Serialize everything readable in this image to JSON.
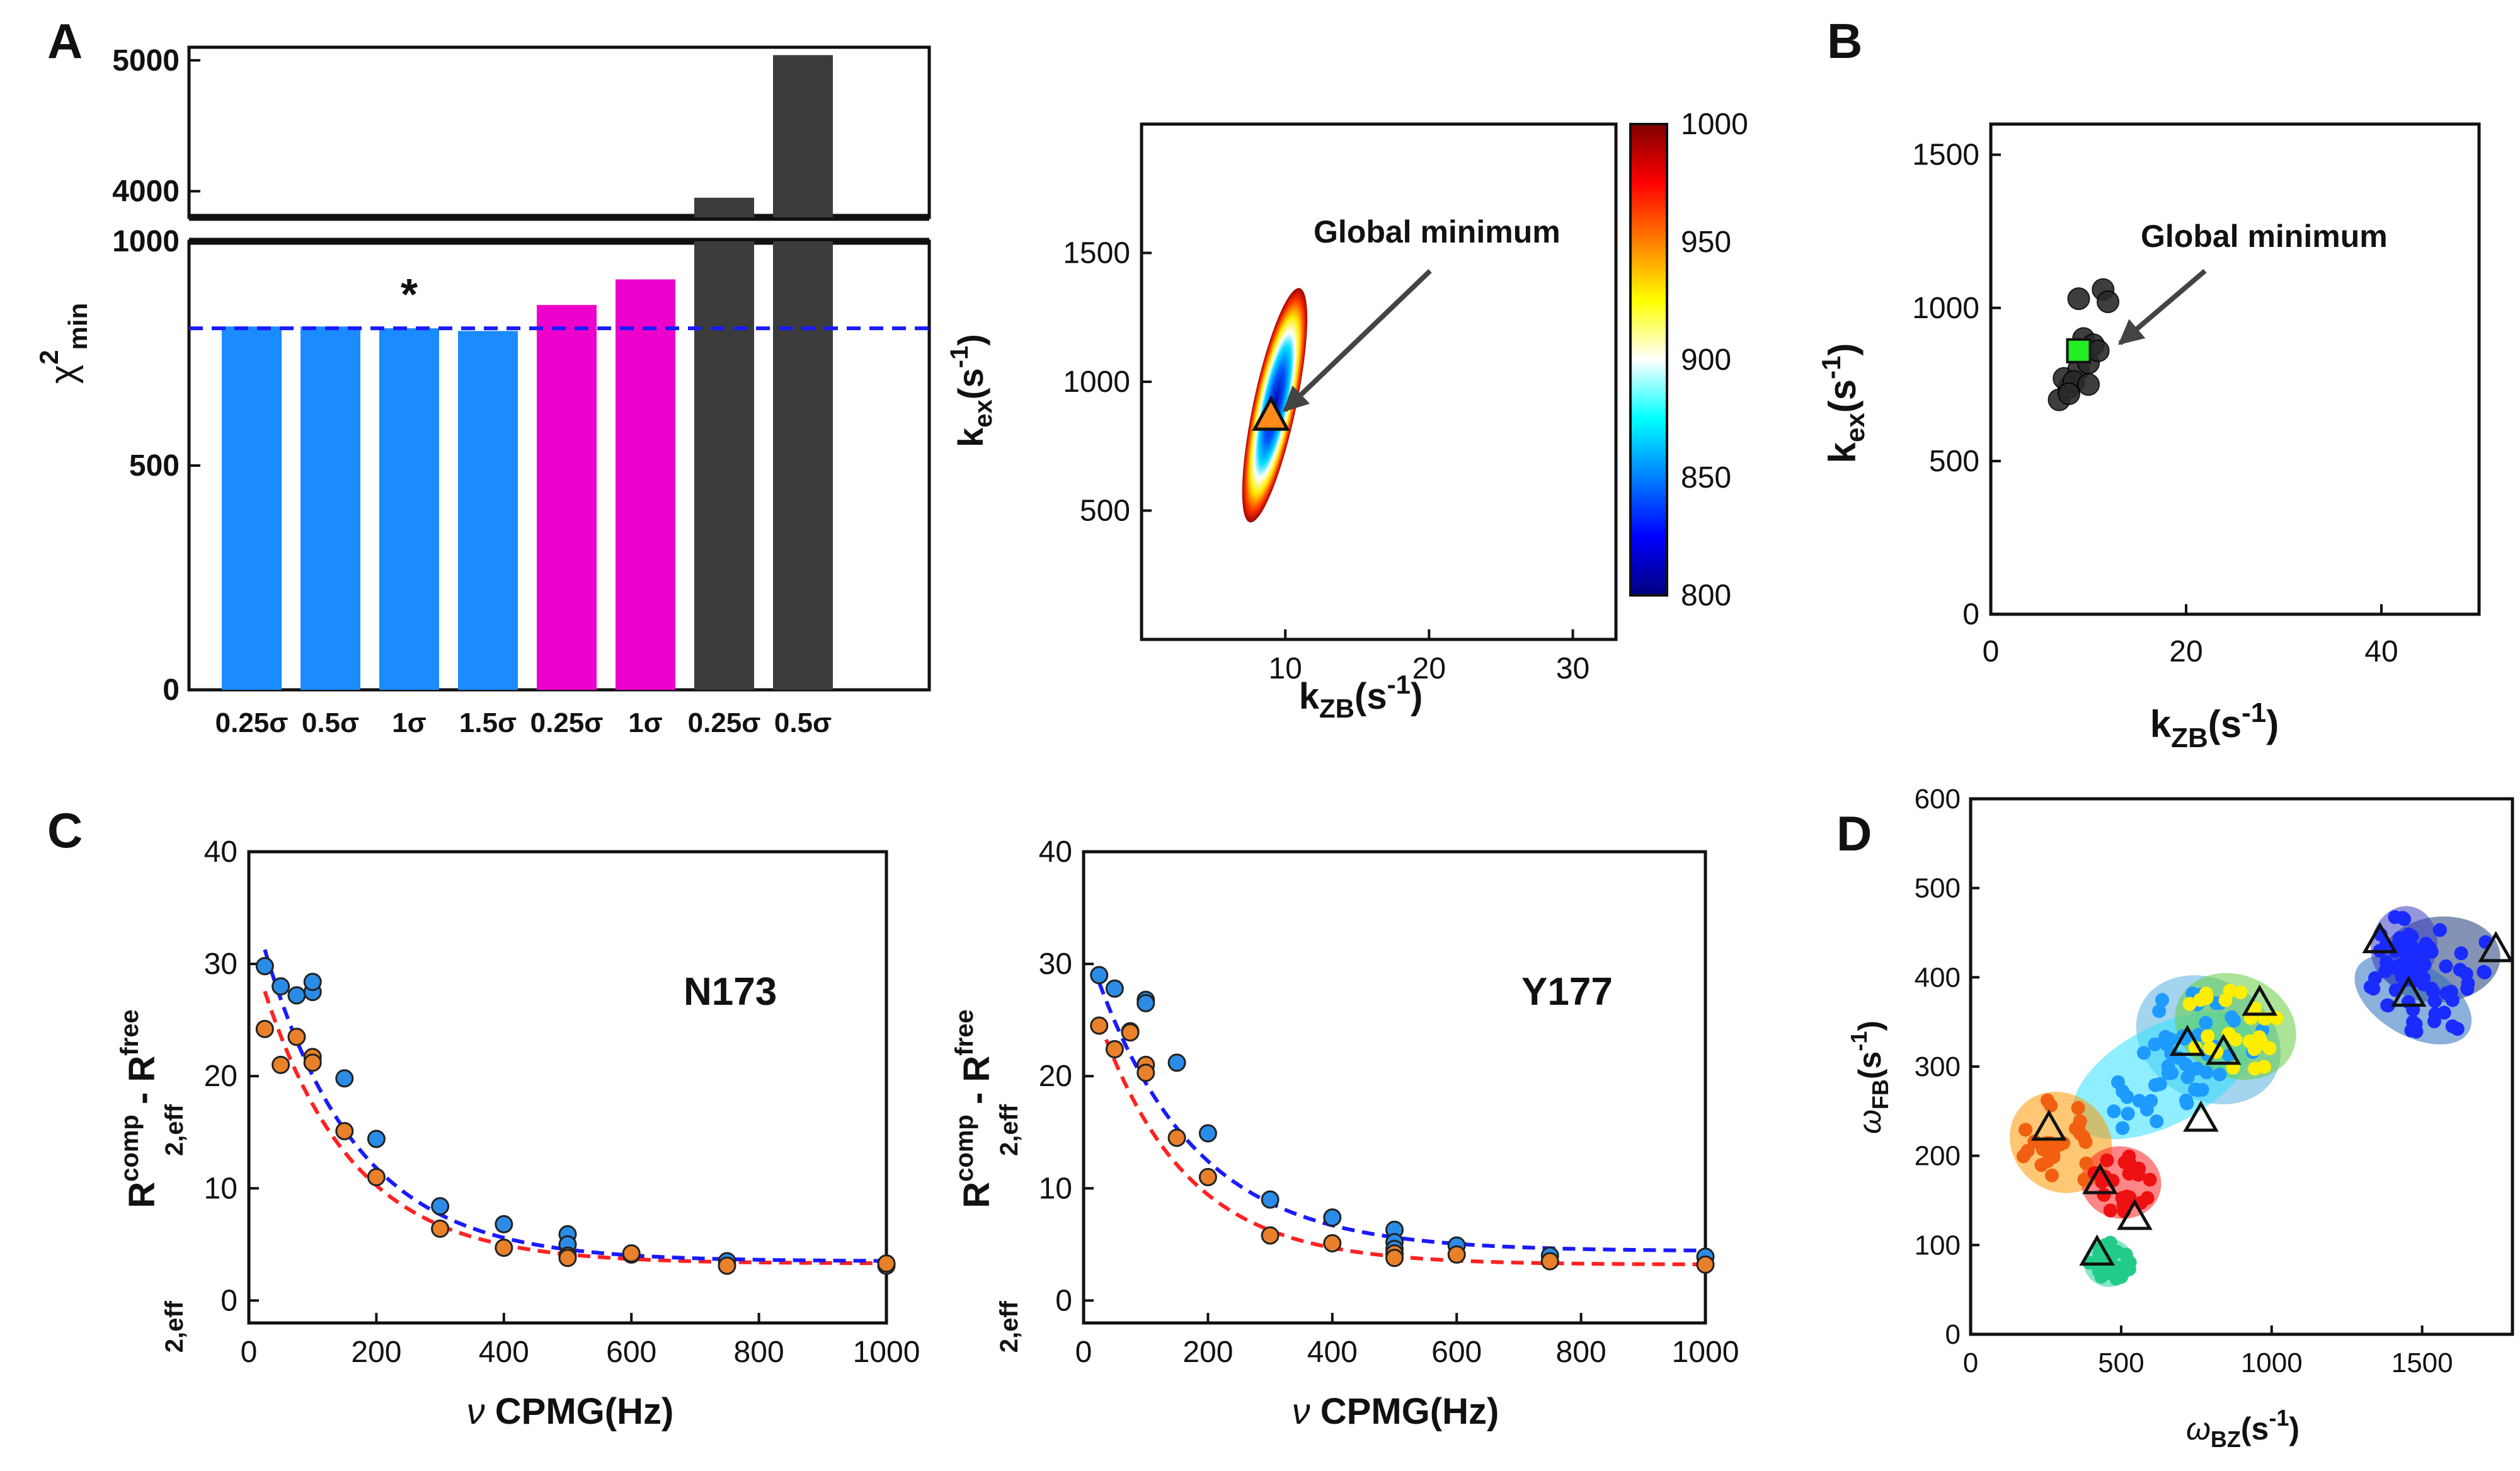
{
  "panel_labels": {
    "A": "A",
    "B": "B",
    "C": "C",
    "D": "D"
  },
  "axis_text": {
    "chi_sym": "χ",
    "chi_sup": "2",
    "chi_sub": "min",
    "k": "k",
    "ex": "ex",
    "zb": "ZB",
    "s": "(s",
    "neg1": "-1",
    "close": ")",
    "nu": "ν",
    "cpmg": " CPMG(Hz)",
    "R": "R",
    "comp": "comp",
    "free": "free",
    "sub2eff": "2,eff",
    "minus": " - ",
    "omega": "ω",
    "fb": "FB",
    "bz": "BZ"
  },
  "chart_data": [
    {
      "id": "A-bars",
      "type": "bar",
      "title": "",
      "ylabel": "χ2 min",
      "broken_axis": true,
      "ylim_lower": [
        0,
        1000
      ],
      "ylim_upper": [
        3800,
        5100
      ],
      "categories": [
        "0.25σ",
        "0.5σ",
        "1σ",
        "1.5σ",
        "0.25σ",
        "1σ",
        "0.25σ",
        "0.5σ"
      ],
      "values": [
        810,
        810,
        806,
        800,
        858,
        915,
        3950,
        5040
      ],
      "colors": [
        "#1a8cff",
        "#1a8cff",
        "#1a8cff",
        "#1a8cff",
        "#ee00cc",
        "#ee00cc",
        "#3c3c3c",
        "#3c3c3c"
      ],
      "reference_line": 806,
      "annotation": "*",
      "annotation_index": 2,
      "yticks_lower": [
        0,
        500,
        1000
      ],
      "yticks_upper": [
        4000,
        5000
      ]
    },
    {
      "id": "A-contour",
      "type": "heatmap",
      "xlabel": "kZB (s-1)",
      "ylabel": "kex (s-1)",
      "xlim": [
        0,
        33
      ],
      "ylim": [
        0,
        2000
      ],
      "xticks": [
        10,
        20,
        30
      ],
      "yticks": [
        500,
        1000,
        1500
      ],
      "annotation": "Global minimum",
      "minimum": {
        "x": 9,
        "y": 860
      },
      "colorbar": {
        "min": 800,
        "max": 1000,
        "ticks": [
          800,
          850,
          900,
          950,
          1000
        ]
      }
    },
    {
      "id": "B-scatter",
      "type": "scatter",
      "xlabel": "kZB (s-1)",
      "ylabel": "kex (s-1)",
      "xlim": [
        0,
        50
      ],
      "ylim": [
        0,
        1600
      ],
      "xticks": [
        0,
        20,
        40
      ],
      "yticks": [
        0,
        500,
        1000,
        1500
      ],
      "annotation": "Global minimum",
      "points": [
        [
          7,
          700
        ],
        [
          8,
          740
        ],
        [
          7.5,
          770
        ],
        [
          9,
          800
        ],
        [
          8.5,
          760
        ],
        [
          10,
          820
        ],
        [
          9.5,
          900
        ],
        [
          10.5,
          880
        ],
        [
          11,
          860
        ],
        [
          9,
          1030
        ],
        [
          11.5,
          1060
        ],
        [
          12,
          1020
        ],
        [
          8,
          720
        ],
        [
          10,
          750
        ]
      ],
      "minimum": {
        "x": 9,
        "y": 860
      }
    },
    {
      "id": "C-N173",
      "type": "scatter",
      "title": "N173",
      "xlabel": "ν CPMG(Hz)",
      "ylabel": "R2,eff comp - R2,eff free",
      "xlim": [
        0,
        1000
      ],
      "ylim": [
        -2,
        40
      ],
      "xticks": [
        0,
        200,
        400,
        600,
        800,
        1000
      ],
      "yticks": [
        0,
        10,
        20,
        30,
        40
      ],
      "series": [
        {
          "name": "blue",
          "color": "#2b8ce8",
          "points": [
            [
              25,
              29.8
            ],
            [
              50,
              28
            ],
            [
              75,
              27.2
            ],
            [
              100,
              27.5
            ],
            [
              100,
              28.4
            ],
            [
              150,
              19.8
            ],
            [
              200,
              14.4
            ],
            [
              300,
              8.4
            ],
            [
              400,
              6.8
            ],
            [
              500,
              5.9
            ],
            [
              500,
              5.0
            ],
            [
              600,
              4.1
            ],
            [
              750,
              3.5
            ],
            [
              1000,
              3.1
            ]
          ],
          "fit": {
            "A": 33,
            "k": 145,
            "b": 3.5
          }
        },
        {
          "name": "orange",
          "color": "#e8812a",
          "points": [
            [
              25,
              24.2
            ],
            [
              50,
              21
            ],
            [
              75,
              23.5
            ],
            [
              100,
              21.7
            ],
            [
              100,
              21.2
            ],
            [
              150,
              15.1
            ],
            [
              200,
              11
            ],
            [
              300,
              6.4
            ],
            [
              400,
              4.7
            ],
            [
              500,
              4.0
            ],
            [
              500,
              3.8
            ],
            [
              600,
              4.2
            ],
            [
              750,
              3.1
            ],
            [
              1000,
              3.3
            ]
          ],
          "fit": {
            "A": 29,
            "k": 140,
            "b": 3.3
          }
        }
      ]
    },
    {
      "id": "C-Y177",
      "type": "scatter",
      "title": "Y177",
      "xlabel": "ν CPMG(Hz)",
      "ylabel": "R2,eff comp - R2,eff free",
      "xlim": [
        0,
        1000
      ],
      "ylim": [
        -2,
        40
      ],
      "xticks": [
        0,
        200,
        400,
        600,
        800,
        1000
      ],
      "yticks": [
        0,
        10,
        20,
        30,
        40
      ],
      "series": [
        {
          "name": "blue",
          "color": "#2b8ce8",
          "points": [
            [
              25,
              29
            ],
            [
              50,
              27.8
            ],
            [
              75,
              24
            ],
            [
              100,
              26.8
            ],
            [
              100,
              26.5
            ],
            [
              150,
              21.2
            ],
            [
              200,
              14.9
            ],
            [
              300,
              9
            ],
            [
              400,
              7.4
            ],
            [
              500,
              6.3
            ],
            [
              500,
              5.2
            ],
            [
              500,
              4.6
            ],
            [
              600,
              4.9
            ],
            [
              750,
              4
            ],
            [
              1000,
              3.9
            ]
          ],
          "fit": {
            "A": 28,
            "k": 160,
            "b": 4.4
          }
        },
        {
          "name": "orange",
          "color": "#e8812a",
          "points": [
            [
              25,
              24.5
            ],
            [
              50,
              22.4
            ],
            [
              75,
              23.9
            ],
            [
              100,
              21
            ],
            [
              100,
              20.3
            ],
            [
              150,
              14.5
            ],
            [
              200,
              11
            ],
            [
              300,
              5.8
            ],
            [
              400,
              5.1
            ],
            [
              500,
              4.2
            ],
            [
              500,
              3.8
            ],
            [
              600,
              4.1
            ],
            [
              750,
              3.5
            ],
            [
              1000,
              3.2
            ]
          ],
          "fit": {
            "A": 26,
            "k": 140,
            "b": 3.2
          }
        }
      ]
    },
    {
      "id": "D-clusters",
      "type": "scatter",
      "xlabel": "ωBZ (s-1)",
      "ylabel": "ωFB (s-1)",
      "xlim": [
        0,
        1800
      ],
      "ylim": [
        0,
        600
      ],
      "xticks": [
        0,
        500,
        1000,
        1500
      ],
      "yticks": [
        0,
        100,
        200,
        300,
        400,
        500,
        600
      ],
      "clusters": [
        {
          "name": "dark-blue",
          "color": "#1f3a78",
          "center": [
            1560,
            420
          ],
          "r": [
            200,
            48
          ],
          "rot": -5,
          "dots": "#1a2bff"
        },
        {
          "name": "mid-blue",
          "color": "#2a6fc0",
          "center": [
            1470,
            375
          ],
          "r": [
            120,
            72
          ],
          "rot": -60,
          "dots": "#1a2bff"
        },
        {
          "name": "indigo",
          "color": "#3b3fbf",
          "center": [
            1440,
            435
          ],
          "r": [
            110,
            45
          ],
          "rot": 10,
          "dots": "#1a2bff"
        },
        {
          "name": "light-blue",
          "color": "#5ab0e0",
          "center": [
            790,
            330
          ],
          "r": [
            200,
            85
          ],
          "rot": -60,
          "dots": "#1e9bff"
        },
        {
          "name": "cyan",
          "color": "#33e0ff",
          "center": [
            640,
            290
          ],
          "r": [
            330,
            55
          ],
          "rot": -28,
          "dots": "#1e9bff"
        },
        {
          "name": "green",
          "color": "#66cc44",
          "center": [
            880,
            345
          ],
          "r": [
            170,
            70
          ],
          "rot": -65,
          "dots": "#ffee00"
        },
        {
          "name": "orange",
          "color": "#ff9900",
          "center": [
            300,
            215
          ],
          "r": [
            160,
            60
          ],
          "rot": -48,
          "dots": "#f06010"
        },
        {
          "name": "red",
          "color": "#ff2222",
          "center": [
            500,
            170
          ],
          "r": [
            120,
            45
          ],
          "rot": -80,
          "dots": "#ee1111"
        },
        {
          "name": "teal",
          "color": "#22d49a",
          "center": [
            460,
            80
          ],
          "r": [
            80,
            28
          ],
          "rot": -88,
          "dots": "#22cc88"
        }
      ],
      "triangles": [
        [
          1360,
          440
        ],
        [
          1455,
          380
        ],
        [
          1745,
          430
        ],
        [
          960,
          370
        ],
        [
          720,
          325
        ],
        [
          840,
          315
        ],
        [
          765,
          240
        ],
        [
          260,
          230
        ],
        [
          430,
          170
        ],
        [
          545,
          130
        ],
        [
          420,
          90
        ]
      ]
    }
  ],
  "colors": {
    "axis": "#111111",
    "global_arrow": "#444444",
    "ref_line": "#1a1aff"
  }
}
